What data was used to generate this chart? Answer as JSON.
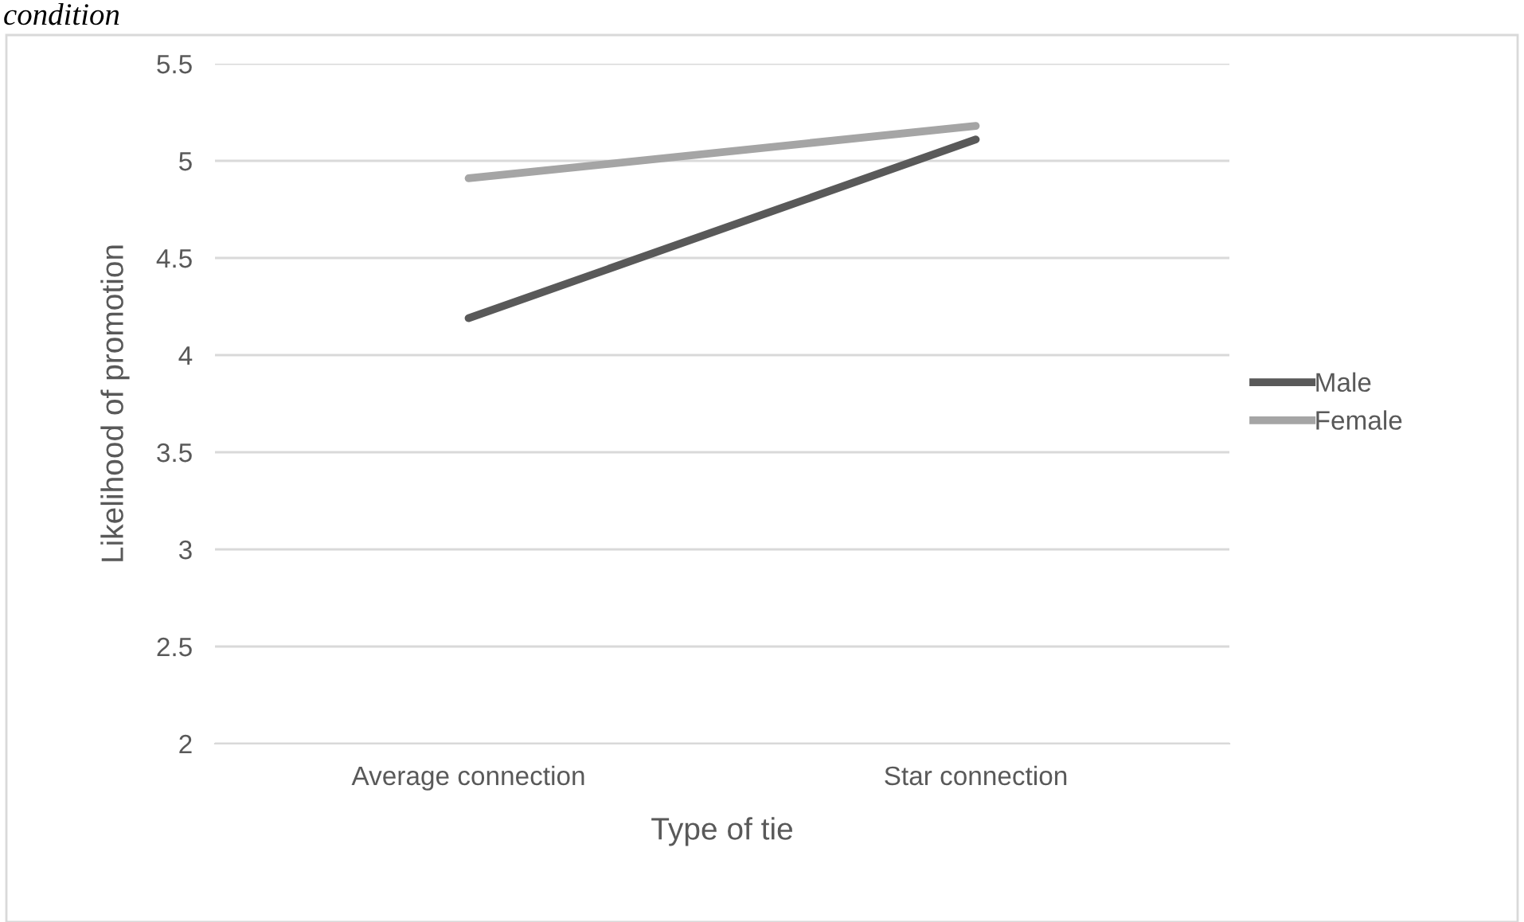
{
  "chart_data": {
    "type": "line",
    "xlabel": "Type of tie",
    "ylabel": "Likelihood of promotion",
    "categories": [
      "Average connection",
      "Star connection"
    ],
    "series": [
      {
        "name": "Male",
        "color": "#595959",
        "values": [
          4.19,
          5.11
        ]
      },
      {
        "name": "Female",
        "color": "#a5a5a5",
        "values": [
          4.91,
          5.18
        ]
      }
    ],
    "ylim": [
      2,
      5.5
    ],
    "yticks": [
      2,
      2.5,
      3,
      3.5,
      4,
      4.5,
      5,
      5.5
    ],
    "grid": "y",
    "legend": "right",
    "marker": "none",
    "line_style": "solid",
    "annotations": [
      "condition"
    ]
  }
}
